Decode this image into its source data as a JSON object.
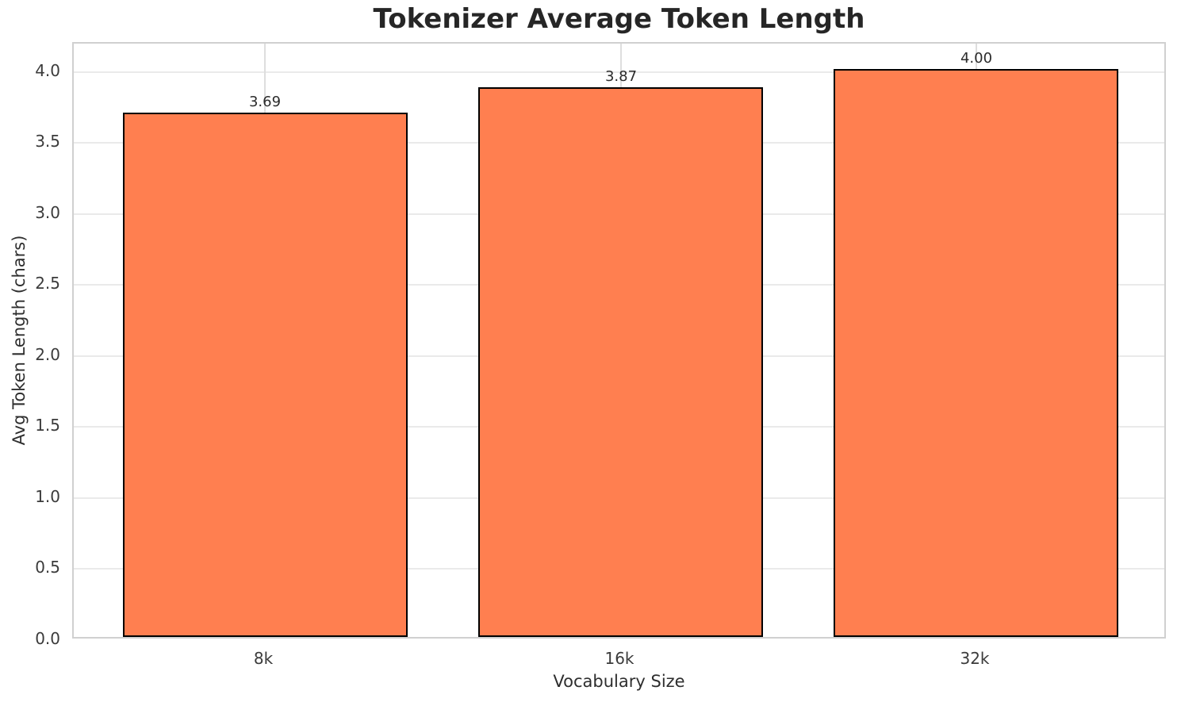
{
  "chart_data": {
    "type": "bar",
    "title": "Tokenizer Average Token Length",
    "xlabel": "Vocabulary Size",
    "ylabel": "Avg Token Length (chars)",
    "categories": [
      "8k",
      "16k",
      "32k"
    ],
    "values": [
      3.69,
      3.87,
      4.0
    ],
    "value_labels": [
      "3.69",
      "3.87",
      "4.00"
    ],
    "yticks": [
      0.0,
      0.5,
      1.0,
      1.5,
      2.0,
      2.5,
      3.0,
      3.5,
      4.0
    ],
    "ytick_labels": [
      "0.0",
      "0.5",
      "1.0",
      "1.5",
      "2.0",
      "2.5",
      "3.0",
      "3.5",
      "4.0"
    ],
    "ylim": [
      0,
      4.2
    ],
    "grid": true,
    "legend": null,
    "colors": {
      "bar_fill": "#FF7F50",
      "bar_edge": "#000000",
      "grid_horizontal": "#eaeaea",
      "grid_vertical": "#dedede",
      "spine": "#d0d0d0",
      "text": "#262626",
      "background": "#ffffff"
    }
  }
}
